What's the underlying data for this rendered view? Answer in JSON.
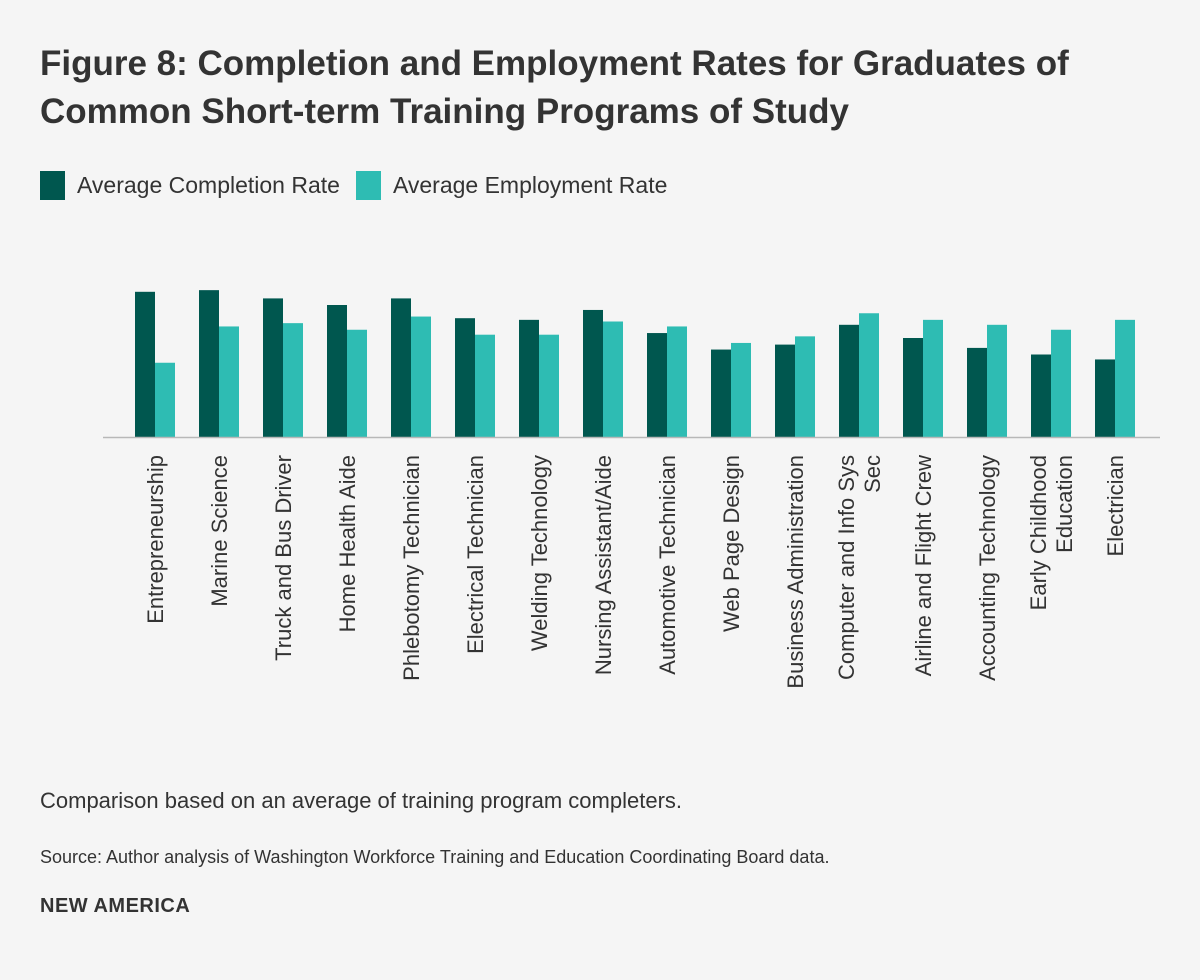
{
  "figure": {
    "title": "Figure 8: Completion and Employment Rates for Graduates of Common Short-term Training Programs of Study",
    "caption": "Comparison based on an average of training program completers.",
    "source": "Source: Author analysis of Washington Workforce Training and Education Coordinating Board data.",
    "brand": "NEW AMERICA"
  },
  "chart_data": {
    "type": "bar",
    "title": "Figure 8: Completion and Employment Rates for Graduates of Common Short-term Training Programs of Study",
    "xlabel": "",
    "ylabel": "",
    "ylim": [
      0,
      1
    ],
    "grid": false,
    "legend_position": "top-left",
    "categories": [
      "Entrepreneurship",
      "Marine Science",
      "Truck and Bus Driver",
      "Home Health Aide",
      "Phlebotomy Technician",
      "Electrical Technician",
      "Welding Technology",
      "Nursing Assistant/Aide",
      "Automotive Technician",
      "Web Page Design",
      "Business Administration",
      "Computer and Info Sys Sec",
      "Airline and Flight Crew",
      "Accounting Technology",
      "Early Childhood Education",
      "Electrician"
    ],
    "category_lines": [
      [
        "Entrepreneurship"
      ],
      [
        "Marine Science"
      ],
      [
        "Truck and Bus Driver"
      ],
      [
        "Home Health Aide"
      ],
      [
        "Phlebotomy Technician"
      ],
      [
        "Electrical Technician"
      ],
      [
        "Welding Technology"
      ],
      [
        "Nursing Assistant/Aide"
      ],
      [
        "Automotive Technician"
      ],
      [
        "Web Page Design"
      ],
      [
        "Business Administration"
      ],
      [
        "Computer and Info Sys",
        "Sec"
      ],
      [
        "Airline and Flight Crew"
      ],
      [
        "Accounting Technology"
      ],
      [
        "Early Childhood",
        "Education"
      ],
      [
        "Electrician"
      ]
    ],
    "series": [
      {
        "name": "Average Completion Rate",
        "color": "#00574f",
        "values": [
          0.88,
          0.89,
          0.84,
          0.8,
          0.84,
          0.72,
          0.71,
          0.77,
          0.63,
          0.53,
          0.56,
          0.68,
          0.6,
          0.54,
          0.5,
          0.47
        ]
      },
      {
        "name": "Average Employment Rate",
        "color": "#2ebcb3",
        "values": [
          0.45,
          0.67,
          0.69,
          0.65,
          0.73,
          0.62,
          0.62,
          0.7,
          0.67,
          0.57,
          0.61,
          0.75,
          0.71,
          0.68,
          0.65,
          0.71
        ]
      }
    ]
  }
}
